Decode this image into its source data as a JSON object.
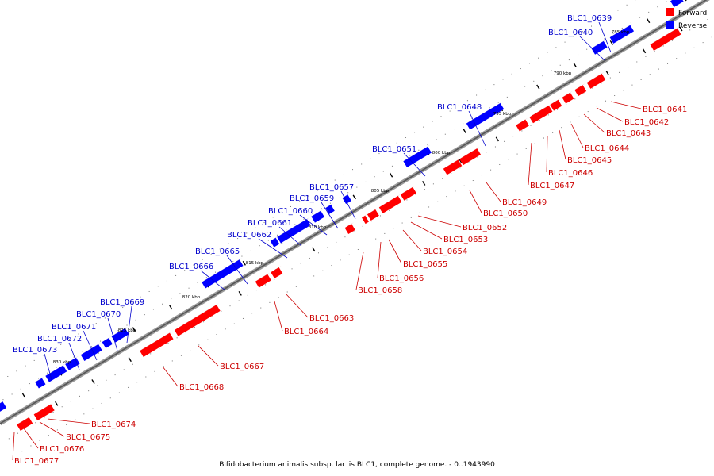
{
  "legend": {
    "forward": {
      "label": "Forward",
      "color": "#ff0000"
    },
    "reverse": {
      "label": "Reverse",
      "color": "#0000ff"
    }
  },
  "footer": {
    "text": "Bifidobacterium animalis subsp. lactis BLC1, complete genome. - 0..1943990"
  },
  "ticks": [
    "785 kbp",
    "790 kbp",
    "795 kbp",
    "800 kbp",
    "805 kbp",
    "810 kbp",
    "815 kbp",
    "820 kbp",
    "825 kbp",
    "830 kbp"
  ],
  "genes_forward": [
    "BLC1_0641",
    "BLC1_0642",
    "BLC1_0643",
    "BLC1_0644",
    "BLC1_0645",
    "BLC1_0646",
    "BLC1_0647",
    "BLC1_0649",
    "BLC1_0650",
    "BLC1_0652",
    "BLC1_0653",
    "BLC1_0654",
    "BLC1_0655",
    "BLC1_0656",
    "BLC1_0658",
    "BLC1_0663",
    "BLC1_0664",
    "BLC1_0667",
    "BLC1_0668",
    "BLC1_0674",
    "BLC1_0675",
    "BLC1_0676",
    "BLC1_0677"
  ],
  "genes_reverse": [
    "BLC1_0639",
    "BLC1_0640",
    "BLC1_0648",
    "BLC1_0651",
    "BLC1_0657",
    "BLC1_0659",
    "BLC1_0660",
    "BLC1_0661",
    "BLC1_0662",
    "BLC1_0665",
    "BLC1_0666",
    "BLC1_0669",
    "BLC1_0670",
    "BLC1_0671",
    "BLC1_0672",
    "BLC1_0673"
  ]
}
